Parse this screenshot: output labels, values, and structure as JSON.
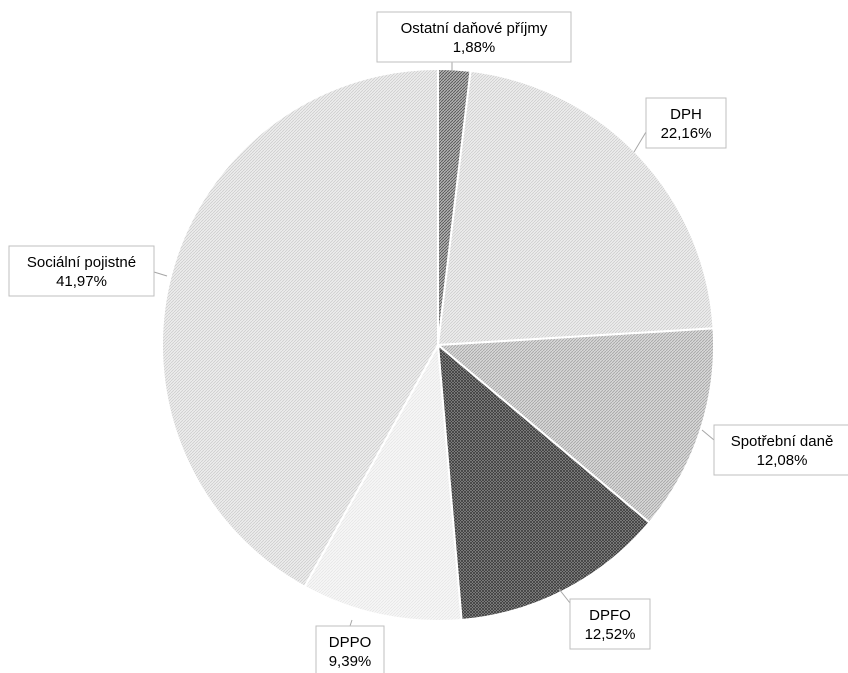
{
  "chart_data": {
    "type": "pie",
    "title": "",
    "start_angle_deg": 0,
    "direction": "clockwise",
    "slices": [
      {
        "label": "Ostatní daňové příjmy",
        "value": 1.88,
        "display": "1,88%",
        "fill": "#8c8c8c",
        "pattern": "dense-dark"
      },
      {
        "label": "DPH",
        "value": 22.16,
        "display": "22,16%",
        "fill": "#e6e6e6",
        "pattern": "light"
      },
      {
        "label": "Spotřební daně",
        "value": 12.08,
        "display": "12,08%",
        "fill": "#c4c4c4",
        "pattern": "medium"
      },
      {
        "label": "DPFO",
        "value": 12.52,
        "display": "12,52%",
        "fill": "#5e5e5e",
        "pattern": "dark"
      },
      {
        "label": "DPPO",
        "value": 9.39,
        "display": "9,39%",
        "fill": "#f2f2f2",
        "pattern": "very-light"
      },
      {
        "label": "Sociální pojistné",
        "value": 41.97,
        "display": "41,97%",
        "fill": "#d9d9d9",
        "pattern": "light"
      }
    ]
  }
}
